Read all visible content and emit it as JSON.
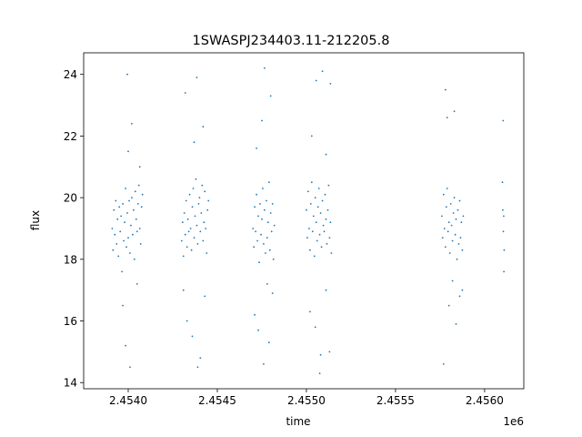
{
  "chart_data": {
    "type": "scatter",
    "title": "1SWASPJ234403.11-212205.8",
    "xlabel": "time",
    "ylabel": "flux",
    "x_offset_label": "1e6",
    "xlim": [
      2453740,
      2456210
    ],
    "ylim": [
      13.8,
      24.7
    ],
    "x_ticks": [
      2453990,
      2454490,
      2454990,
      2455490,
      2455990
    ],
    "x_tick_labels": [
      "2.4540",
      "2.4545",
      "2.4550",
      "2.4555",
      "2.4560"
    ],
    "y_ticks": [
      14,
      16,
      18,
      20,
      22,
      24
    ],
    "y_tick_labels": [
      "14",
      "16",
      "18",
      "20",
      "22",
      "24"
    ],
    "grid": false,
    "marker_color": "#1f77b4",
    "series": [
      {
        "points": [
          [
            2453900,
            19.0
          ],
          [
            2453905,
            18.3
          ],
          [
            2453910,
            19.6
          ],
          [
            2453915,
            18.8
          ],
          [
            2453920,
            19.9
          ],
          [
            2453925,
            18.5
          ],
          [
            2453930,
            19.3
          ],
          [
            2453935,
            18.1
          ],
          [
            2453940,
            19.7
          ],
          [
            2453945,
            18.9
          ],
          [
            2453950,
            19.4
          ],
          [
            2453955,
            17.6
          ],
          [
            2453960,
            19.8
          ],
          [
            2453965,
            18.6
          ],
          [
            2453970,
            19.2
          ],
          [
            2453975,
            20.3
          ],
          [
            2453980,
            18.4
          ],
          [
            2453985,
            19.5
          ],
          [
            2453990,
            18.7
          ],
          [
            2453995,
            19.9
          ],
          [
            2454000,
            18.2
          ],
          [
            2454005,
            19.1
          ],
          [
            2454010,
            20.0
          ],
          [
            2454015,
            18.8
          ],
          [
            2454020,
            19.6
          ],
          [
            2454025,
            18.0
          ],
          [
            2454030,
            20.2
          ],
          [
            2454035,
            19.3
          ],
          [
            2454040,
            18.9
          ],
          [
            2454045,
            19.8
          ],
          [
            2454050,
            20.4
          ],
          [
            2454055,
            19.0
          ],
          [
            2454060,
            18.5
          ],
          [
            2454065,
            19.7
          ],
          [
            2454070,
            20.1
          ],
          [
            2453960,
            16.5
          ],
          [
            2453975,
            15.2
          ],
          [
            2454000,
            14.5
          ],
          [
            2453990,
            21.5
          ],
          [
            2453985,
            24.0
          ],
          [
            2454010,
            22.4
          ],
          [
            2454040,
            17.2
          ],
          [
            2454055,
            21.0
          ],
          [
            2454290,
            18.6
          ],
          [
            2454295,
            19.2
          ],
          [
            2454300,
            18.1
          ],
          [
            2454305,
            19.5
          ],
          [
            2454310,
            18.8
          ],
          [
            2454315,
            19.9
          ],
          [
            2454320,
            18.4
          ],
          [
            2454325,
            19.3
          ],
          [
            2454330,
            18.9
          ],
          [
            2454335,
            20.1
          ],
          [
            2454340,
            19.0
          ],
          [
            2454345,
            18.3
          ],
          [
            2454350,
            19.7
          ],
          [
            2454355,
            20.3
          ],
          [
            2454360,
            18.7
          ],
          [
            2454365,
            19.4
          ],
          [
            2454370,
            20.6
          ],
          [
            2454375,
            19.1
          ],
          [
            2454380,
            18.5
          ],
          [
            2454385,
            19.8
          ],
          [
            2454390,
            20.0
          ],
          [
            2454395,
            18.9
          ],
          [
            2454400,
            19.5
          ],
          [
            2454405,
            20.4
          ],
          [
            2454410,
            18.6
          ],
          [
            2454415,
            19.2
          ],
          [
            2454420,
            20.2
          ],
          [
            2454425,
            19.0
          ],
          [
            2454430,
            18.2
          ],
          [
            2454435,
            19.6
          ],
          [
            2454440,
            19.9
          ],
          [
            2454300,
            17.0
          ],
          [
            2454320,
            16.0
          ],
          [
            2454350,
            15.5
          ],
          [
            2454380,
            14.5
          ],
          [
            2454395,
            14.8
          ],
          [
            2454310,
            23.4
          ],
          [
            2454360,
            21.8
          ],
          [
            2454375,
            23.9
          ],
          [
            2454410,
            22.3
          ],
          [
            2454420,
            16.8
          ],
          [
            2454690,
            19.0
          ],
          [
            2454695,
            18.4
          ],
          [
            2454700,
            19.7
          ],
          [
            2454705,
            18.9
          ],
          [
            2454710,
            20.1
          ],
          [
            2454715,
            18.6
          ],
          [
            2454720,
            19.4
          ],
          [
            2454725,
            17.9
          ],
          [
            2454730,
            19.8
          ],
          [
            2454735,
            18.8
          ],
          [
            2454740,
            19.3
          ],
          [
            2454745,
            20.3
          ],
          [
            2454750,
            18.5
          ],
          [
            2454755,
            19.6
          ],
          [
            2454760,
            18.2
          ],
          [
            2454765,
            19.9
          ],
          [
            2454770,
            18.7
          ],
          [
            2454775,
            19.2
          ],
          [
            2454780,
            20.5
          ],
          [
            2454785,
            18.3
          ],
          [
            2454790,
            19.5
          ],
          [
            2454795,
            18.9
          ],
          [
            2454800,
            19.8
          ],
          [
            2454805,
            18.0
          ],
          [
            2454810,
            19.1
          ],
          [
            2454700,
            16.2
          ],
          [
            2454720,
            15.7
          ],
          [
            2454750,
            14.6
          ],
          [
            2454780,
            15.3
          ],
          [
            2454800,
            16.9
          ],
          [
            2454710,
            21.6
          ],
          [
            2454740,
            22.5
          ],
          [
            2454755,
            24.2
          ],
          [
            2454790,
            23.3
          ],
          [
            2454770,
            17.2
          ],
          [
            2454990,
            19.6
          ],
          [
            2454995,
            18.7
          ],
          [
            2455000,
            20.2
          ],
          [
            2455005,
            19.0
          ],
          [
            2455010,
            18.3
          ],
          [
            2455015,
            19.8
          ],
          [
            2455020,
            20.5
          ],
          [
            2455025,
            18.9
          ],
          [
            2455030,
            19.4
          ],
          [
            2455035,
            18.1
          ],
          [
            2455040,
            20.0
          ],
          [
            2455045,
            19.2
          ],
          [
            2455050,
            18.6
          ],
          [
            2455055,
            19.7
          ],
          [
            2455060,
            20.3
          ],
          [
            2455065,
            18.8
          ],
          [
            2455070,
            19.5
          ],
          [
            2455075,
            18.4
          ],
          [
            2455080,
            19.9
          ],
          [
            2455085,
            19.1
          ],
          [
            2455090,
            18.9
          ],
          [
            2455095,
            20.1
          ],
          [
            2455100,
            19.3
          ],
          [
            2455105,
            18.5
          ],
          [
            2455110,
            19.6
          ],
          [
            2455115,
            20.4
          ],
          [
            2455120,
            18.7
          ],
          [
            2455125,
            19.2
          ],
          [
            2455130,
            18.2
          ],
          [
            2455010,
            16.3
          ],
          [
            2455040,
            15.8
          ],
          [
            2455070,
            14.9
          ],
          [
            2455100,
            17.0
          ],
          [
            2455120,
            15.0
          ],
          [
            2455020,
            22.0
          ],
          [
            2455045,
            23.8
          ],
          [
            2455080,
            24.1
          ],
          [
            2455100,
            21.4
          ],
          [
            2455125,
            23.7
          ],
          [
            2455065,
            14.3
          ],
          [
            2455750,
            19.4
          ],
          [
            2455755,
            18.7
          ],
          [
            2455760,
            20.1
          ],
          [
            2455765,
            19.0
          ],
          [
            2455770,
            18.4
          ],
          [
            2455775,
            19.7
          ],
          [
            2455780,
            20.3
          ],
          [
            2455785,
            18.9
          ],
          [
            2455790,
            19.2
          ],
          [
            2455795,
            18.2
          ],
          [
            2455800,
            19.8
          ],
          [
            2455805,
            19.1
          ],
          [
            2455810,
            18.6
          ],
          [
            2455815,
            19.5
          ],
          [
            2455820,
            20.0
          ],
          [
            2455825,
            18.8
          ],
          [
            2455830,
            19.3
          ],
          [
            2455835,
            18.0
          ],
          [
            2455840,
            19.6
          ],
          [
            2455845,
            18.5
          ],
          [
            2455850,
            19.9
          ],
          [
            2455855,
            18.7
          ],
          [
            2455860,
            19.2
          ],
          [
            2455865,
            18.3
          ],
          [
            2455870,
            19.4
          ],
          [
            2455790,
            16.5
          ],
          [
            2455810,
            17.3
          ],
          [
            2455830,
            15.9
          ],
          [
            2455760,
            14.6
          ],
          [
            2455770,
            23.5
          ],
          [
            2455780,
            22.6
          ],
          [
            2455820,
            22.8
          ],
          [
            2455850,
            16.8
          ],
          [
            2455865,
            17.0
          ],
          [
            2456090,
            20.5
          ],
          [
            2456092,
            19.6
          ],
          [
            2456095,
            18.9
          ],
          [
            2456097,
            19.4
          ],
          [
            2456100,
            18.3
          ],
          [
            2456094,
            22.5
          ],
          [
            2456098,
            17.6
          ]
        ]
      }
    ]
  }
}
